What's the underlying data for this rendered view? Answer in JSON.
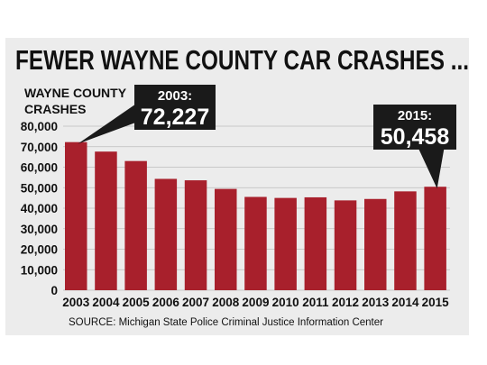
{
  "chart_data": {
    "type": "bar",
    "title": "FEWER WAYNE COUNTY CAR CRASHES ...",
    "ylabel": [
      "WAYNE COUNTY",
      "CRASHES"
    ],
    "xlabel": "",
    "categories": [
      "2003",
      "2004",
      "2005",
      "2006",
      "2007",
      "2008",
      "2009",
      "2010",
      "2011",
      "2012",
      "2013",
      "2014",
      "2015"
    ],
    "values": [
      72227,
      67600,
      63000,
      54300,
      53600,
      49400,
      45500,
      45000,
      45300,
      43800,
      44500,
      48200,
      50458
    ],
    "ylim": [
      0,
      80000
    ],
    "yticks": [
      0,
      10000,
      20000,
      30000,
      40000,
      50000,
      60000,
      70000,
      80000
    ],
    "ytick_labels": [
      "0",
      "10,000",
      "20,000",
      "30,000",
      "40,000",
      "50,000",
      "60,000",
      "70,000",
      "80,000"
    ],
    "grid": true,
    "bar_color": "#a8202c",
    "callouts": [
      {
        "year": "2003:",
        "value": "72,227",
        "index": 0
      },
      {
        "year": "2015:",
        "value": "50,458",
        "index": 12
      }
    ],
    "source": "SOURCE: Michigan State Police Criminal Justice Information Center"
  }
}
